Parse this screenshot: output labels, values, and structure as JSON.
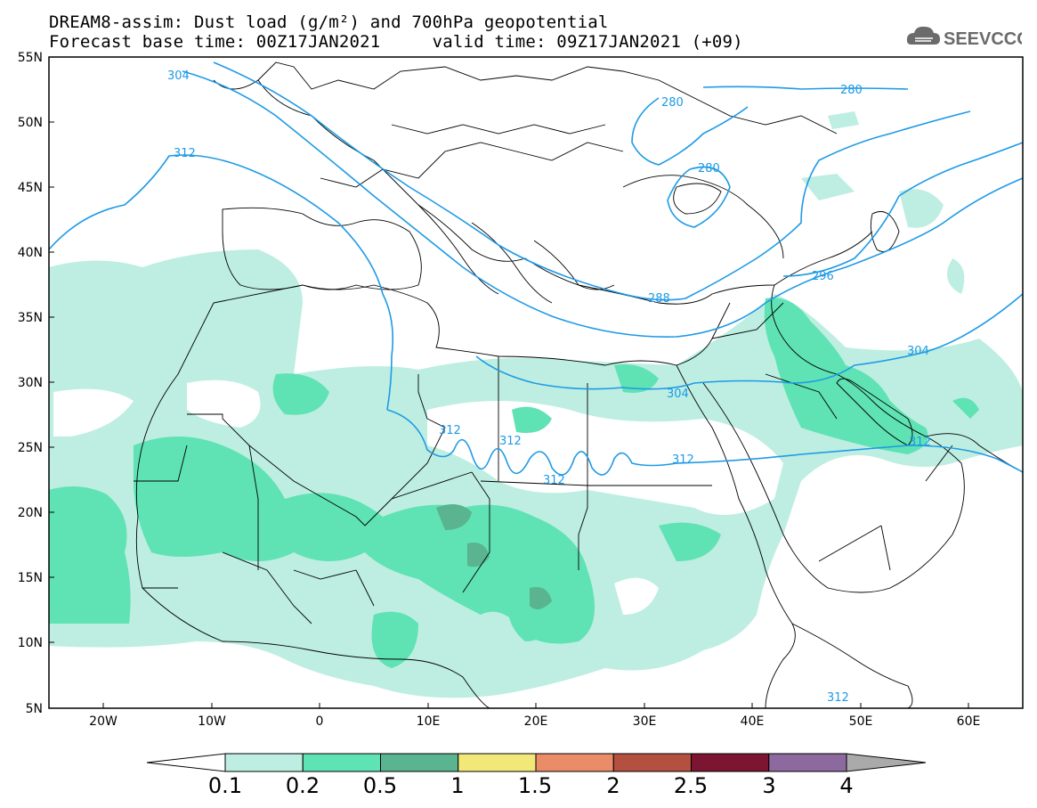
{
  "header": {
    "title_line1": "DREAM8-assim: Dust load (g/m²) and 700hPa geopotential",
    "title_line2": "Forecast base time: 00Z17JAN2021     valid time: 09Z17JAN2021 (+09)",
    "logo_text": "SEEVCCC"
  },
  "axes": {
    "lat_labels": [
      "55N",
      "50N",
      "45N",
      "40N",
      "35N",
      "30N",
      "25N",
      "20N",
      "15N",
      "10N",
      "5N"
    ],
    "lon_labels": [
      "20W",
      "10W",
      "0",
      "10E",
      "20E",
      "30E",
      "40E",
      "50E",
      "60E"
    ]
  },
  "contours": {
    "color": "#1e9ae6",
    "labels": [
      "304",
      "312",
      "280",
      "280",
      "280",
      "288",
      "296",
      "304",
      "304",
      "312",
      "312",
      "312",
      "312",
      "312",
      "312"
    ]
  },
  "colorbar": {
    "tick_labels": [
      "0.1",
      "0.2",
      "0.5",
      "1",
      "1.5",
      "2",
      "2.5",
      "3",
      "4"
    ],
    "colors": [
      "#ffffff",
      "#bdeee1",
      "#5fe2b4",
      "#59b48f",
      "#f2e878",
      "#eb8c69",
      "#b45040",
      "#7c1531",
      "#8c699e",
      "#aaaaaa"
    ]
  }
}
